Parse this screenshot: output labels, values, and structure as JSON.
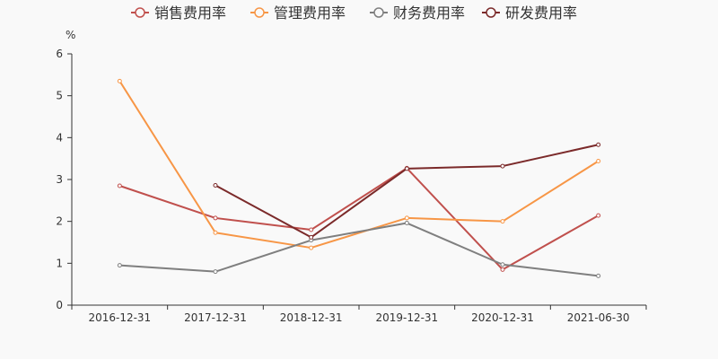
{
  "chart_data": {
    "type": "line",
    "title": "",
    "ylabel": "%",
    "xlabel": "",
    "ylim": [
      0,
      6
    ],
    "yticks": [
      0,
      1,
      2,
      3,
      4,
      5,
      6
    ],
    "grid": false,
    "legend_position": "top",
    "categories": [
      "2016-12-31",
      "2017-12-31",
      "2018-12-31",
      "2019-12-31",
      "2020-12-31",
      "2021-06-30"
    ],
    "series": [
      {
        "name": "销售费用率",
        "color": "#c0504d",
        "values": [
          2.85,
          2.08,
          1.8,
          3.27,
          0.85,
          2.14
        ]
      },
      {
        "name": "管理费用率",
        "color": "#f79646",
        "values": [
          5.35,
          1.73,
          1.37,
          2.08,
          2.0,
          3.44
        ]
      },
      {
        "name": "财务费用率",
        "color": "#7f7f7f",
        "values": [
          0.95,
          0.8,
          1.55,
          1.96,
          0.97,
          0.7
        ]
      },
      {
        "name": "研发费用率",
        "color": "#7b2a2a",
        "values": [
          null,
          2.86,
          1.62,
          3.26,
          3.32,
          3.83
        ]
      }
    ]
  }
}
